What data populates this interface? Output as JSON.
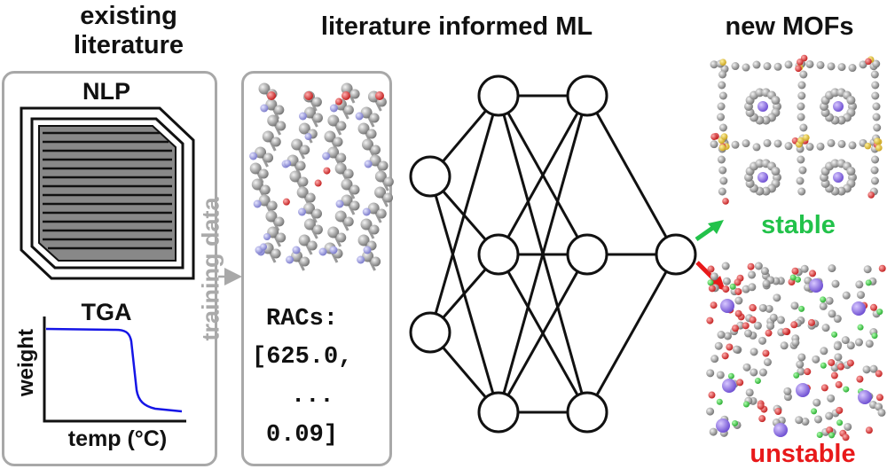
{
  "headings": {
    "existing_line1": "existing",
    "existing_line2": "literature",
    "ml": "literature informed ML",
    "new_mofs": "new MOFs"
  },
  "left_panel": {
    "nlp_label": "NLP",
    "tga_label": "TGA",
    "tga_ylabel": "weight",
    "tga_xlabel": "temp (°C)",
    "curve_color": "#1515e6"
  },
  "training_label": "training data",
  "racs": {
    "title": "RACs:",
    "first_value": "[625.0,",
    "ellipsis": "...",
    "last_value": "0.09]"
  },
  "outcomes": {
    "stable": "stable",
    "unstable": "unstable",
    "stable_color": "#22c24a",
    "unstable_color": "#e8191a"
  },
  "network": {
    "layer_sizes": [
      2,
      3,
      3,
      1
    ]
  }
}
